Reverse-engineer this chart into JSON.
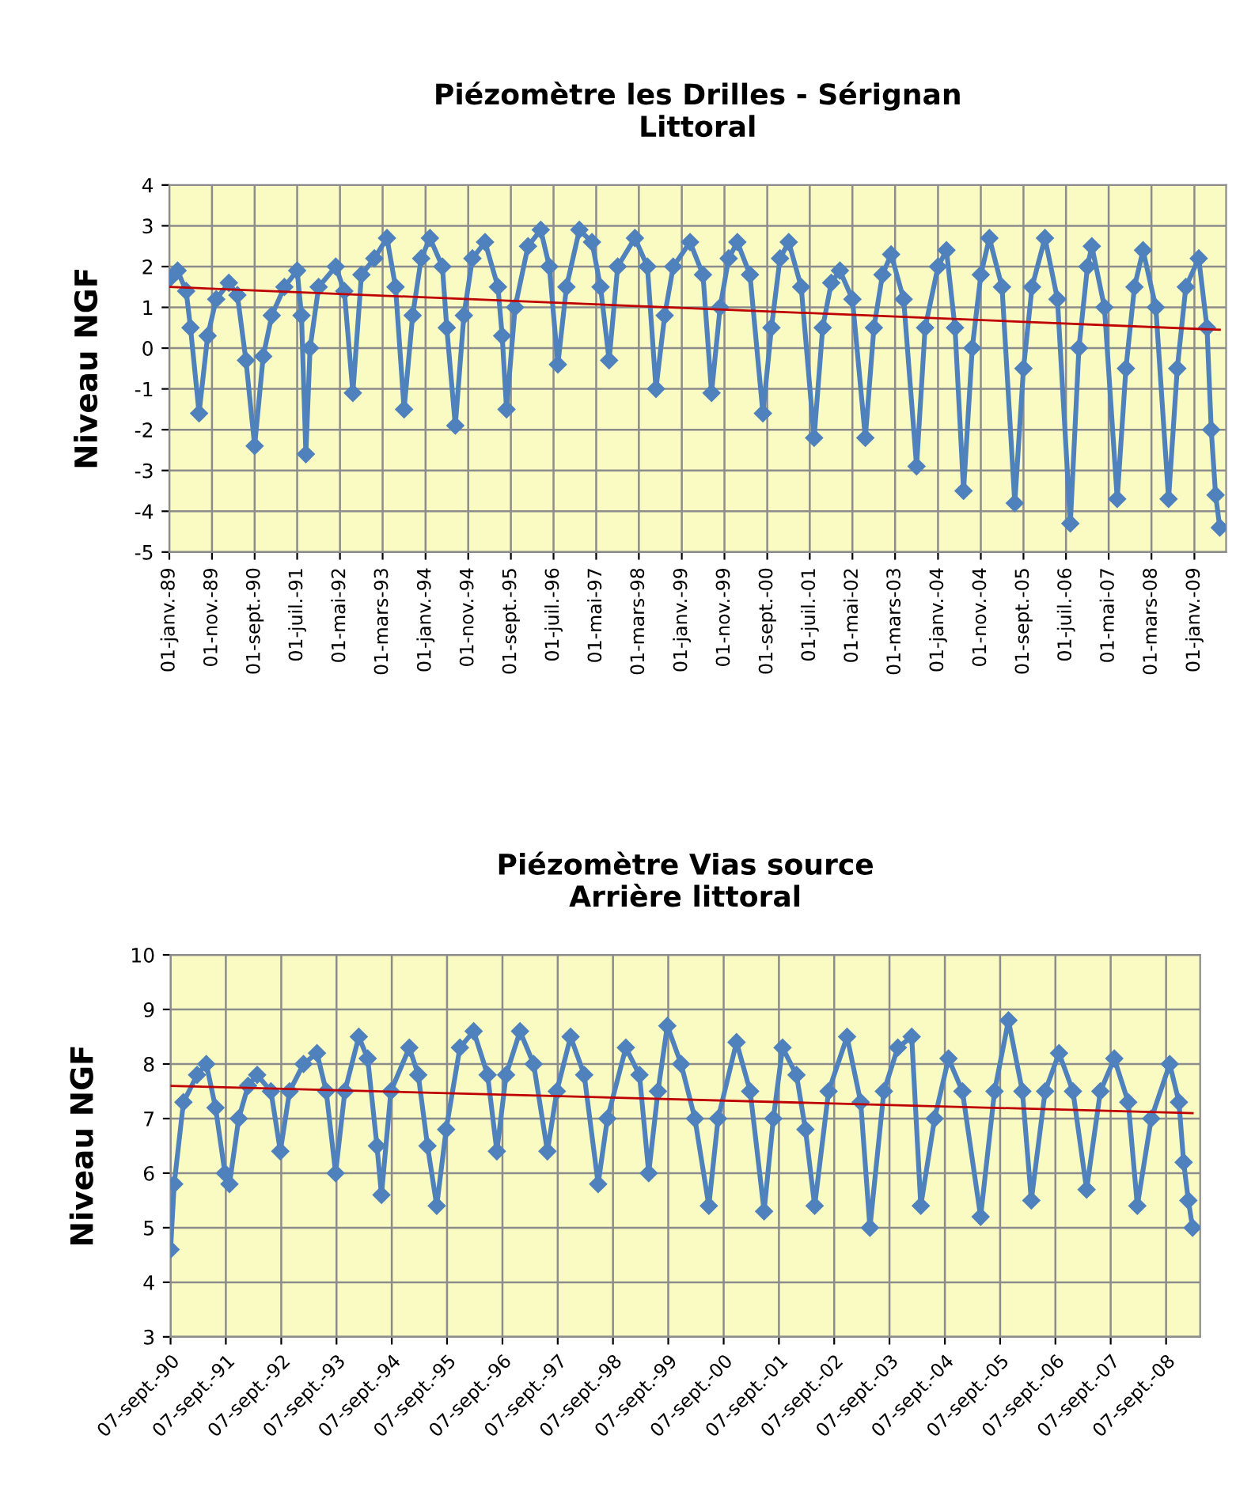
{
  "chart_data": [
    {
      "type": "line",
      "title": "Piézomètre les Drilles - Sérignan\nLittoral",
      "ylabel": "Niveau NGF",
      "xlim": [
        "1989-01-01",
        "2009-08-15"
      ],
      "ylim": [
        -5,
        4
      ],
      "yticks": [
        -5,
        -4,
        -3,
        -2,
        -1,
        0,
        1,
        2,
        3,
        4
      ],
      "xticks": [
        {
          "value": "1989-01-01",
          "label": "01-janv.-89"
        },
        {
          "value": "1989-11-01",
          "label": "01-nov.-89"
        },
        {
          "value": "1990-09-01",
          "label": "01-sept.-90"
        },
        {
          "value": "1991-07-01",
          "label": "01-juil.-91"
        },
        {
          "value": "1992-05-01",
          "label": "01-mai-92"
        },
        {
          "value": "1993-03-01",
          "label": "01-mars-93"
        },
        {
          "value": "1994-01-01",
          "label": "01-janv.-94"
        },
        {
          "value": "1994-11-01",
          "label": "01-nov.-94"
        },
        {
          "value": "1995-09-01",
          "label": "01-sept.-95"
        },
        {
          "value": "1996-07-01",
          "label": "01-juil.-96"
        },
        {
          "value": "1997-05-01",
          "label": "01-mai-97"
        },
        {
          "value": "1998-03-01",
          "label": "01-mars-98"
        },
        {
          "value": "1999-01-01",
          "label": "01-janv.-99"
        },
        {
          "value": "1999-11-01",
          "label": "01-nov.-99"
        },
        {
          "value": "2000-09-01",
          "label": "01-sept.-00"
        },
        {
          "value": "2001-07-01",
          "label": "01-juil.-01"
        },
        {
          "value": "2002-05-01",
          "label": "01-mai-02"
        },
        {
          "value": "2003-03-01",
          "label": "01-mars-03"
        },
        {
          "value": "2004-01-01",
          "label": "01-janv.-04"
        },
        {
          "value": "2004-11-01",
          "label": "01-nov.-04"
        },
        {
          "value": "2005-09-01",
          "label": "01-sept.-05"
        },
        {
          "value": "2006-07-01",
          "label": "01-juil.-06"
        },
        {
          "value": "2007-05-01",
          "label": "01-mai-07"
        },
        {
          "value": "2008-03-01",
          "label": "01-mars-08"
        },
        {
          "value": "2009-01-01",
          "label": "01-janv.-09"
        }
      ],
      "grid": true,
      "marker": "diamond",
      "series": [
        {
          "color": "#4f81bd",
          "x": [
            "1989-01",
            "1989-03",
            "1989-05",
            "1989-06",
            "1989-08",
            "1989-10",
            "1989-12",
            "1990-03",
            "1990-05",
            "1990-07",
            "1990-09",
            "1990-11",
            "1991-01",
            "1991-04",
            "1991-07",
            "1991-08",
            "1991-09",
            "1991-10",
            "1991-12",
            "1992-04",
            "1992-06",
            "1992-08",
            "1992-10",
            "1993-01",
            "1993-04",
            "1993-06",
            "1993-08",
            "1993-10",
            "1993-12",
            "1994-02",
            "1994-05",
            "1994-06",
            "1994-08",
            "1994-10",
            "1994-12",
            "1995-03",
            "1995-06",
            "1995-07",
            "1995-08",
            "1995-10",
            "1996-01",
            "1996-04",
            "1996-06",
            "1996-08",
            "1996-10",
            "1997-01",
            "1997-04",
            "1997-06",
            "1997-08",
            "1997-10",
            "1998-02",
            "1998-05",
            "1998-07",
            "1998-09",
            "1998-11",
            "1999-03",
            "1999-06",
            "1999-08",
            "1999-10",
            "1999-12",
            "2000-02",
            "2000-05",
            "2000-08",
            "2000-10",
            "2000-12",
            "2001-02",
            "2001-05",
            "2001-08",
            "2001-10",
            "2001-12",
            "2002-02",
            "2002-05",
            "2002-08",
            "2002-10",
            "2002-12",
            "2003-02",
            "2003-05",
            "2003-08",
            "2003-10",
            "2004-01",
            "2004-03",
            "2004-05",
            "2004-07",
            "2004-09",
            "2004-11",
            "2005-01",
            "2005-04",
            "2005-07",
            "2005-09",
            "2005-11",
            "2006-02",
            "2006-05",
            "2006-08",
            "2006-10",
            "2006-12",
            "2007-01",
            "2007-04",
            "2007-07",
            "2007-09",
            "2007-11",
            "2008-01",
            "2008-04",
            "2008-07",
            "2008-09",
            "2008-11",
            "2009-02",
            "2009-04",
            "2009-05",
            "2009-06",
            "2009-07"
          ],
          "values": [
            1.7,
            1.9,
            1.4,
            0.5,
            -1.6,
            0.3,
            1.2,
            1.6,
            1.3,
            -0.3,
            -2.4,
            -0.2,
            0.8,
            1.5,
            1.9,
            0.8,
            -2.6,
            0.0,
            1.5,
            2.0,
            1.4,
            -1.1,
            1.8,
            2.2,
            2.7,
            1.5,
            -1.5,
            0.8,
            2.2,
            2.7,
            2.0,
            0.5,
            -1.9,
            0.8,
            2.2,
            2.6,
            1.5,
            0.3,
            -1.5,
            1.0,
            2.5,
            2.9,
            2.0,
            -0.4,
            1.5,
            2.9,
            2.6,
            1.5,
            -0.3,
            2.0,
            2.7,
            2.0,
            -1.0,
            0.8,
            2.0,
            2.6,
            1.8,
            -1.1,
            1.0,
            2.2,
            2.6,
            1.8,
            -1.6,
            0.5,
            2.2,
            2.6,
            1.5,
            -2.2,
            0.5,
            1.6,
            1.9,
            1.2,
            -2.2,
            0.5,
            1.8,
            2.3,
            1.2,
            -2.9,
            0.5,
            2.0,
            2.4,
            0.5,
            -3.5,
            0.0,
            1.8,
            2.7,
            1.5,
            -3.8,
            -0.5,
            1.5,
            2.7,
            1.2,
            -4.3,
            0.0,
            2.0,
            2.5,
            1.0,
            -3.7,
            -0.5,
            1.5,
            2.4,
            1.0,
            -3.7,
            -0.5,
            1.5,
            2.2,
            0.5,
            -2.0,
            -3.6,
            -4.4
          ]
        },
        {
          "type": "line",
          "marker": "none",
          "color": "#c00000",
          "x": [
            "1989-01",
            "2009-07"
          ],
          "values": [
            1.5,
            0.45
          ]
        }
      ]
    },
    {
      "type": "line",
      "title": "Piézomètre Vias source\nArrière littoral",
      "ylabel": "Niveau NGF",
      "xlim": [
        "1990-09-07",
        "2009-04-20"
      ],
      "ylim": [
        3,
        10
      ],
      "yticks": [
        3,
        4,
        5,
        6,
        7,
        8,
        9,
        10
      ],
      "xticks": [
        {
          "value": "1990-09-07",
          "label": "07-sept.-90"
        },
        {
          "value": "1991-09-07",
          "label": "07-sept.-91"
        },
        {
          "value": "1992-09-07",
          "label": "07-sept.-92"
        },
        {
          "value": "1993-09-07",
          "label": "07-sept.-93"
        },
        {
          "value": "1994-09-07",
          "label": "07-sept.-94"
        },
        {
          "value": "1995-09-07",
          "label": "07-sept.-95"
        },
        {
          "value": "1996-09-07",
          "label": "07-sept.-96"
        },
        {
          "value": "1997-09-07",
          "label": "07-sept.-97"
        },
        {
          "value": "1998-09-07",
          "label": "07-sept.-98"
        },
        {
          "value": "1999-09-07",
          "label": "07-sept.-99"
        },
        {
          "value": "2000-09-07",
          "label": "07-sept.-00"
        },
        {
          "value": "2001-09-07",
          "label": "07-sept.-01"
        },
        {
          "value": "2002-09-07",
          "label": "07-sept.-02"
        },
        {
          "value": "2003-09-07",
          "label": "07-sept.-03"
        },
        {
          "value": "2004-09-07",
          "label": "07-sept.-04"
        },
        {
          "value": "2005-09-07",
          "label": "07-sept.-05"
        },
        {
          "value": "2006-09-07",
          "label": "07-sept.-06"
        },
        {
          "value": "2007-09-07",
          "label": "07-sept.-07"
        },
        {
          "value": "2008-09-07",
          "label": "07-sept.-08"
        }
      ],
      "grid": true,
      "marker": "diamond",
      "series": [
        {
          "color": "#4f81bd",
          "x": [
            "1990-09-07",
            "1990-10",
            "1990-12",
            "1991-03",
            "1991-05",
            "1991-07",
            "1991-09",
            "1991-10",
            "1991-12",
            "1992-02",
            "1992-04",
            "1992-07",
            "1992-09",
            "1992-11",
            "1993-02",
            "1993-05",
            "1993-07",
            "1993-09",
            "1993-11",
            "1994-02",
            "1994-04",
            "1994-06",
            "1994-07",
            "1994-09",
            "1995-01",
            "1995-03",
            "1995-05",
            "1995-07",
            "1995-09",
            "1995-12",
            "1996-03",
            "1996-06",
            "1996-08",
            "1996-10",
            "1997-01",
            "1997-04",
            "1997-07",
            "1997-09",
            "1997-12",
            "1998-03",
            "1998-06",
            "1998-08",
            "1998-12",
            "1999-03",
            "1999-05",
            "1999-07",
            "1999-09",
            "1999-12",
            "2000-03",
            "2000-06",
            "2000-08",
            "2000-12",
            "2001-03",
            "2001-06",
            "2001-08",
            "2001-10",
            "2002-01",
            "2002-03",
            "2002-05",
            "2002-08",
            "2002-12",
            "2003-03",
            "2003-05",
            "2003-08",
            "2003-11",
            "2004-02",
            "2004-04",
            "2004-07",
            "2004-10",
            "2005-01",
            "2005-05",
            "2005-08",
            "2005-11",
            "2006-02",
            "2006-04",
            "2006-07",
            "2006-10",
            "2007-01",
            "2007-04",
            "2007-07",
            "2007-10",
            "2008-01",
            "2008-03",
            "2008-06",
            "2008-10",
            "2008-12",
            "2009-01",
            "2009-02",
            "2009-03"
          ],
          "values": [
            4.6,
            5.8,
            7.3,
            7.8,
            8.0,
            7.2,
            6.0,
            5.8,
            7.0,
            7.6,
            7.8,
            7.5,
            6.4,
            7.5,
            8.0,
            8.2,
            7.5,
            6.0,
            7.5,
            8.5,
            8.1,
            6.5,
            5.6,
            7.5,
            8.3,
            7.8,
            6.5,
            5.4,
            6.8,
            8.3,
            8.6,
            7.8,
            6.4,
            7.8,
            8.6,
            8.0,
            6.4,
            7.5,
            8.5,
            7.8,
            5.8,
            7.0,
            8.3,
            7.8,
            6.0,
            7.5,
            8.7,
            8.0,
            7.0,
            5.4,
            7.0,
            8.4,
            7.5,
            5.3,
            7.0,
            8.3,
            7.8,
            6.8,
            5.4,
            7.5,
            8.5,
            7.3,
            5.0,
            7.5,
            8.3,
            8.5,
            5.4,
            7.0,
            8.1,
            7.5,
            5.2,
            7.5,
            8.8,
            7.5,
            5.5,
            7.5,
            8.2,
            7.5,
            5.7,
            7.5,
            8.1,
            7.3,
            5.4,
            7.0,
            8.0,
            7.3,
            6.2,
            5.5,
            5.0
          ]
        },
        {
          "type": "line",
          "marker": "none",
          "color": "#c00000",
          "x": [
            "1990-09-07",
            "2009-03"
          ],
          "values": [
            7.6,
            7.1
          ]
        }
      ]
    }
  ]
}
